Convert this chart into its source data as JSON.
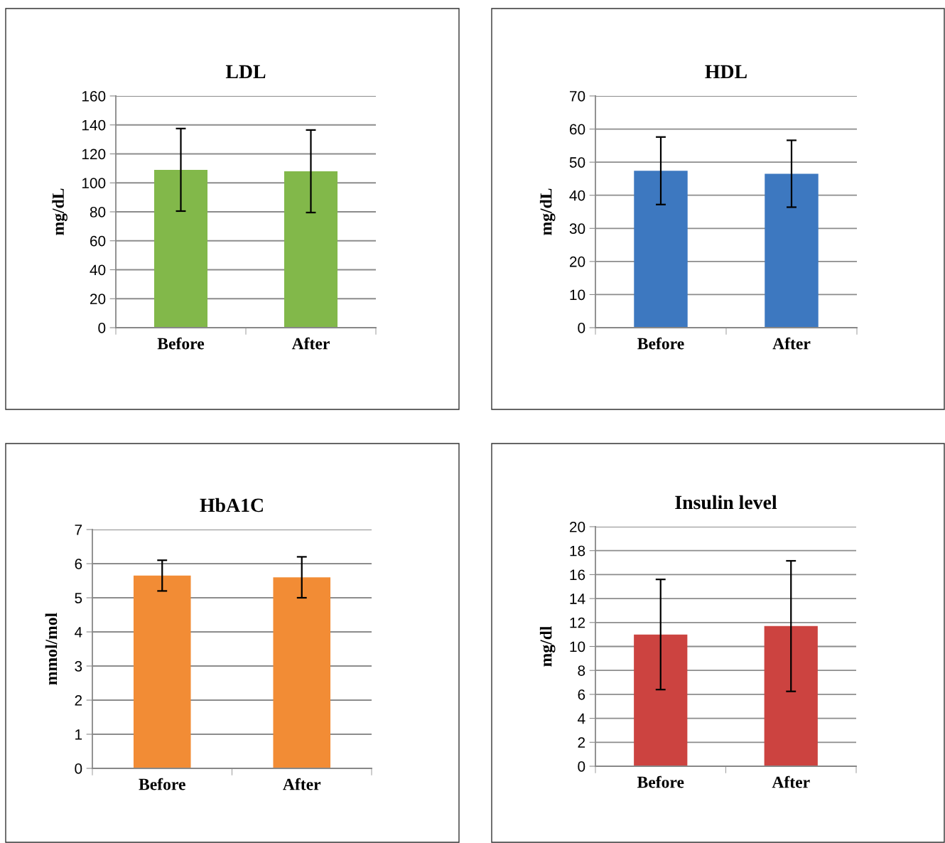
{
  "chart_data": [
    {
      "type": "bar",
      "title": "LDL",
      "ylabel": "mg/dL",
      "categories": [
        "Before",
        "After"
      ],
      "values": [
        109,
        108
      ],
      "errors": [
        28.5,
        28.5
      ],
      "color": "#82b84a",
      "ylim": [
        0,
        160
      ],
      "yticks": [
        0,
        20,
        40,
        60,
        80,
        100,
        120,
        140,
        160
      ],
      "grid": "y"
    },
    {
      "type": "bar",
      "title": "HDL",
      "ylabel": "mg/dL",
      "categories": [
        "Before",
        "After"
      ],
      "values": [
        47.4,
        46.5
      ],
      "errors": [
        10.2,
        10.1
      ],
      "color": "#3d78c0",
      "ylim": [
        0,
        70
      ],
      "yticks": [
        0,
        10,
        20,
        30,
        40,
        50,
        60,
        70
      ],
      "grid": "y"
    },
    {
      "type": "bar",
      "title": "HbA1C",
      "ylabel": "mmol/mol",
      "categories": [
        "Before",
        "After"
      ],
      "values": [
        5.65,
        5.6
      ],
      "errors": [
        0.45,
        0.6
      ],
      "color": "#f28c35",
      "ylim": [
        0,
        7
      ],
      "yticks": [
        0,
        1,
        2,
        3,
        4,
        5,
        6,
        7
      ],
      "grid": "y"
    },
    {
      "type": "bar",
      "title": "Insulin level",
      "ylabel": "mg/dl",
      "categories": [
        "Before",
        "After"
      ],
      "values": [
        11.0,
        11.7
      ],
      "errors": [
        4.6,
        5.45
      ],
      "color": "#cc4340",
      "ylim": [
        0,
        20
      ],
      "yticks": [
        0,
        2,
        4,
        6,
        8,
        10,
        12,
        14,
        16,
        18,
        20
      ],
      "grid": "y"
    }
  ]
}
